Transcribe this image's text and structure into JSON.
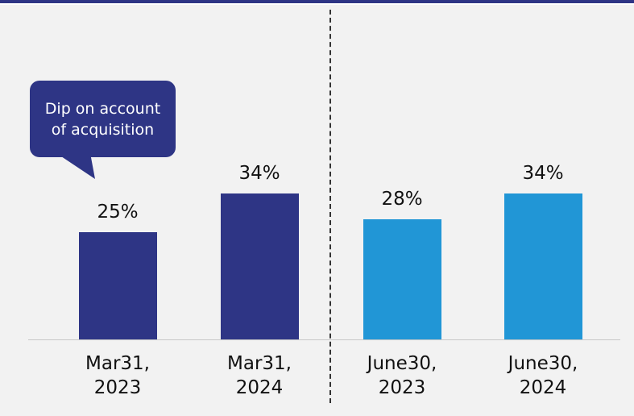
{
  "chart_data": {
    "type": "bar",
    "annotation": "Dip on account of acquisition",
    "categories": [
      "Mar31, 2023",
      "Mar31, 2024",
      "June30, 2023",
      "June30, 2024"
    ],
    "values": [
      25,
      34,
      28,
      34
    ],
    "value_labels": [
      "25%",
      "34%",
      "28%",
      "34%"
    ],
    "colors": [
      "#2e3585",
      "#2e3585",
      "#2196d6",
      "#2196d6"
    ]
  }
}
